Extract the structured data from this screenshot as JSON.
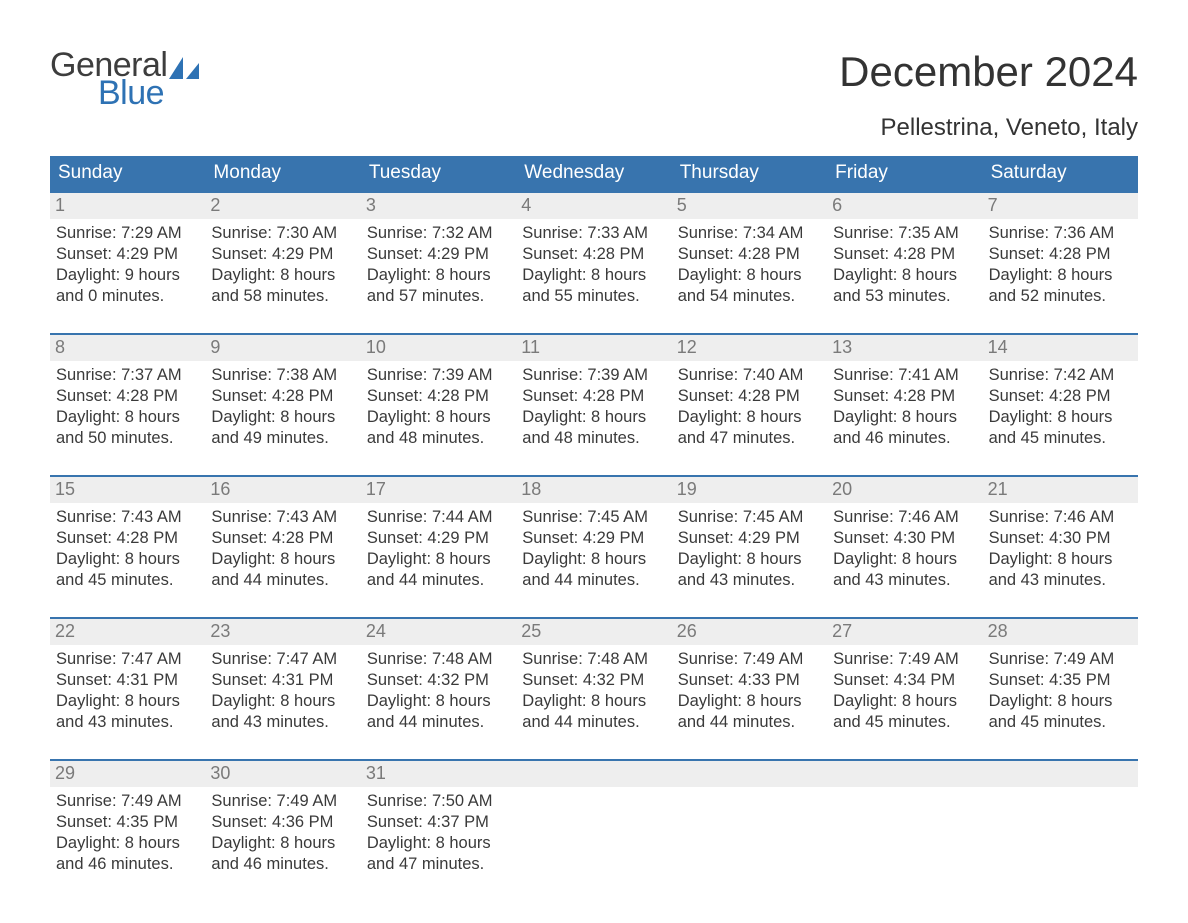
{
  "logo": {
    "word1": "General",
    "word2": "Blue",
    "icon_color": "#2e72b4",
    "text_color_dark": "#3d3d3d"
  },
  "title": {
    "month": "December 2024",
    "location": "Pellestrina, Veneto, Italy"
  },
  "colors": {
    "header_bg": "#3874ae",
    "header_text": "#ffffff",
    "week_border": "#3874ae",
    "daynum_bg": "#eeeeee",
    "daynum_text": "#7a7a7a",
    "body_text": "#3a3a3a",
    "page_bg": "#ffffff"
  },
  "weekdays": [
    "Sunday",
    "Monday",
    "Tuesday",
    "Wednesday",
    "Thursday",
    "Friday",
    "Saturday"
  ],
  "weeks": [
    [
      {
        "day": "1",
        "sunrise": "Sunrise: 7:29 AM",
        "sunset": "Sunset: 4:29 PM",
        "d1": "Daylight: 9 hours",
        "d2": "and 0 minutes."
      },
      {
        "day": "2",
        "sunrise": "Sunrise: 7:30 AM",
        "sunset": "Sunset: 4:29 PM",
        "d1": "Daylight: 8 hours",
        "d2": "and 58 minutes."
      },
      {
        "day": "3",
        "sunrise": "Sunrise: 7:32 AM",
        "sunset": "Sunset: 4:29 PM",
        "d1": "Daylight: 8 hours",
        "d2": "and 57 minutes."
      },
      {
        "day": "4",
        "sunrise": "Sunrise: 7:33 AM",
        "sunset": "Sunset: 4:28 PM",
        "d1": "Daylight: 8 hours",
        "d2": "and 55 minutes."
      },
      {
        "day": "5",
        "sunrise": "Sunrise: 7:34 AM",
        "sunset": "Sunset: 4:28 PM",
        "d1": "Daylight: 8 hours",
        "d2": "and 54 minutes."
      },
      {
        "day": "6",
        "sunrise": "Sunrise: 7:35 AM",
        "sunset": "Sunset: 4:28 PM",
        "d1": "Daylight: 8 hours",
        "d2": "and 53 minutes."
      },
      {
        "day": "7",
        "sunrise": "Sunrise: 7:36 AM",
        "sunset": "Sunset: 4:28 PM",
        "d1": "Daylight: 8 hours",
        "d2": "and 52 minutes."
      }
    ],
    [
      {
        "day": "8",
        "sunrise": "Sunrise: 7:37 AM",
        "sunset": "Sunset: 4:28 PM",
        "d1": "Daylight: 8 hours",
        "d2": "and 50 minutes."
      },
      {
        "day": "9",
        "sunrise": "Sunrise: 7:38 AM",
        "sunset": "Sunset: 4:28 PM",
        "d1": "Daylight: 8 hours",
        "d2": "and 49 minutes."
      },
      {
        "day": "10",
        "sunrise": "Sunrise: 7:39 AM",
        "sunset": "Sunset: 4:28 PM",
        "d1": "Daylight: 8 hours",
        "d2": "and 48 minutes."
      },
      {
        "day": "11",
        "sunrise": "Sunrise: 7:39 AM",
        "sunset": "Sunset: 4:28 PM",
        "d1": "Daylight: 8 hours",
        "d2": "and 48 minutes."
      },
      {
        "day": "12",
        "sunrise": "Sunrise: 7:40 AM",
        "sunset": "Sunset: 4:28 PM",
        "d1": "Daylight: 8 hours",
        "d2": "and 47 minutes."
      },
      {
        "day": "13",
        "sunrise": "Sunrise: 7:41 AM",
        "sunset": "Sunset: 4:28 PM",
        "d1": "Daylight: 8 hours",
        "d2": "and 46 minutes."
      },
      {
        "day": "14",
        "sunrise": "Sunrise: 7:42 AM",
        "sunset": "Sunset: 4:28 PM",
        "d1": "Daylight: 8 hours",
        "d2": "and 45 minutes."
      }
    ],
    [
      {
        "day": "15",
        "sunrise": "Sunrise: 7:43 AM",
        "sunset": "Sunset: 4:28 PM",
        "d1": "Daylight: 8 hours",
        "d2": "and 45 minutes."
      },
      {
        "day": "16",
        "sunrise": "Sunrise: 7:43 AM",
        "sunset": "Sunset: 4:28 PM",
        "d1": "Daylight: 8 hours",
        "d2": "and 44 minutes."
      },
      {
        "day": "17",
        "sunrise": "Sunrise: 7:44 AM",
        "sunset": "Sunset: 4:29 PM",
        "d1": "Daylight: 8 hours",
        "d2": "and 44 minutes."
      },
      {
        "day": "18",
        "sunrise": "Sunrise: 7:45 AM",
        "sunset": "Sunset: 4:29 PM",
        "d1": "Daylight: 8 hours",
        "d2": "and 44 minutes."
      },
      {
        "day": "19",
        "sunrise": "Sunrise: 7:45 AM",
        "sunset": "Sunset: 4:29 PM",
        "d1": "Daylight: 8 hours",
        "d2": "and 43 minutes."
      },
      {
        "day": "20",
        "sunrise": "Sunrise: 7:46 AM",
        "sunset": "Sunset: 4:30 PM",
        "d1": "Daylight: 8 hours",
        "d2": "and 43 minutes."
      },
      {
        "day": "21",
        "sunrise": "Sunrise: 7:46 AM",
        "sunset": "Sunset: 4:30 PM",
        "d1": "Daylight: 8 hours",
        "d2": "and 43 minutes."
      }
    ],
    [
      {
        "day": "22",
        "sunrise": "Sunrise: 7:47 AM",
        "sunset": "Sunset: 4:31 PM",
        "d1": "Daylight: 8 hours",
        "d2": "and 43 minutes."
      },
      {
        "day": "23",
        "sunrise": "Sunrise: 7:47 AM",
        "sunset": "Sunset: 4:31 PM",
        "d1": "Daylight: 8 hours",
        "d2": "and 43 minutes."
      },
      {
        "day": "24",
        "sunrise": "Sunrise: 7:48 AM",
        "sunset": "Sunset: 4:32 PM",
        "d1": "Daylight: 8 hours",
        "d2": "and 44 minutes."
      },
      {
        "day": "25",
        "sunrise": "Sunrise: 7:48 AM",
        "sunset": "Sunset: 4:32 PM",
        "d1": "Daylight: 8 hours",
        "d2": "and 44 minutes."
      },
      {
        "day": "26",
        "sunrise": "Sunrise: 7:49 AM",
        "sunset": "Sunset: 4:33 PM",
        "d1": "Daylight: 8 hours",
        "d2": "and 44 minutes."
      },
      {
        "day": "27",
        "sunrise": "Sunrise: 7:49 AM",
        "sunset": "Sunset: 4:34 PM",
        "d1": "Daylight: 8 hours",
        "d2": "and 45 minutes."
      },
      {
        "day": "28",
        "sunrise": "Sunrise: 7:49 AM",
        "sunset": "Sunset: 4:35 PM",
        "d1": "Daylight: 8 hours",
        "d2": "and 45 minutes."
      }
    ],
    [
      {
        "day": "29",
        "sunrise": "Sunrise: 7:49 AM",
        "sunset": "Sunset: 4:35 PM",
        "d1": "Daylight: 8 hours",
        "d2": "and 46 minutes."
      },
      {
        "day": "30",
        "sunrise": "Sunrise: 7:49 AM",
        "sunset": "Sunset: 4:36 PM",
        "d1": "Daylight: 8 hours",
        "d2": "and 46 minutes."
      },
      {
        "day": "31",
        "sunrise": "Sunrise: 7:50 AM",
        "sunset": "Sunset: 4:37 PM",
        "d1": "Daylight: 8 hours",
        "d2": "and 47 minutes."
      },
      {
        "day": "",
        "sunrise": "",
        "sunset": "",
        "d1": "",
        "d2": ""
      },
      {
        "day": "",
        "sunrise": "",
        "sunset": "",
        "d1": "",
        "d2": ""
      },
      {
        "day": "",
        "sunrise": "",
        "sunset": "",
        "d1": "",
        "d2": ""
      },
      {
        "day": "",
        "sunrise": "",
        "sunset": "",
        "d1": "",
        "d2": ""
      }
    ]
  ]
}
